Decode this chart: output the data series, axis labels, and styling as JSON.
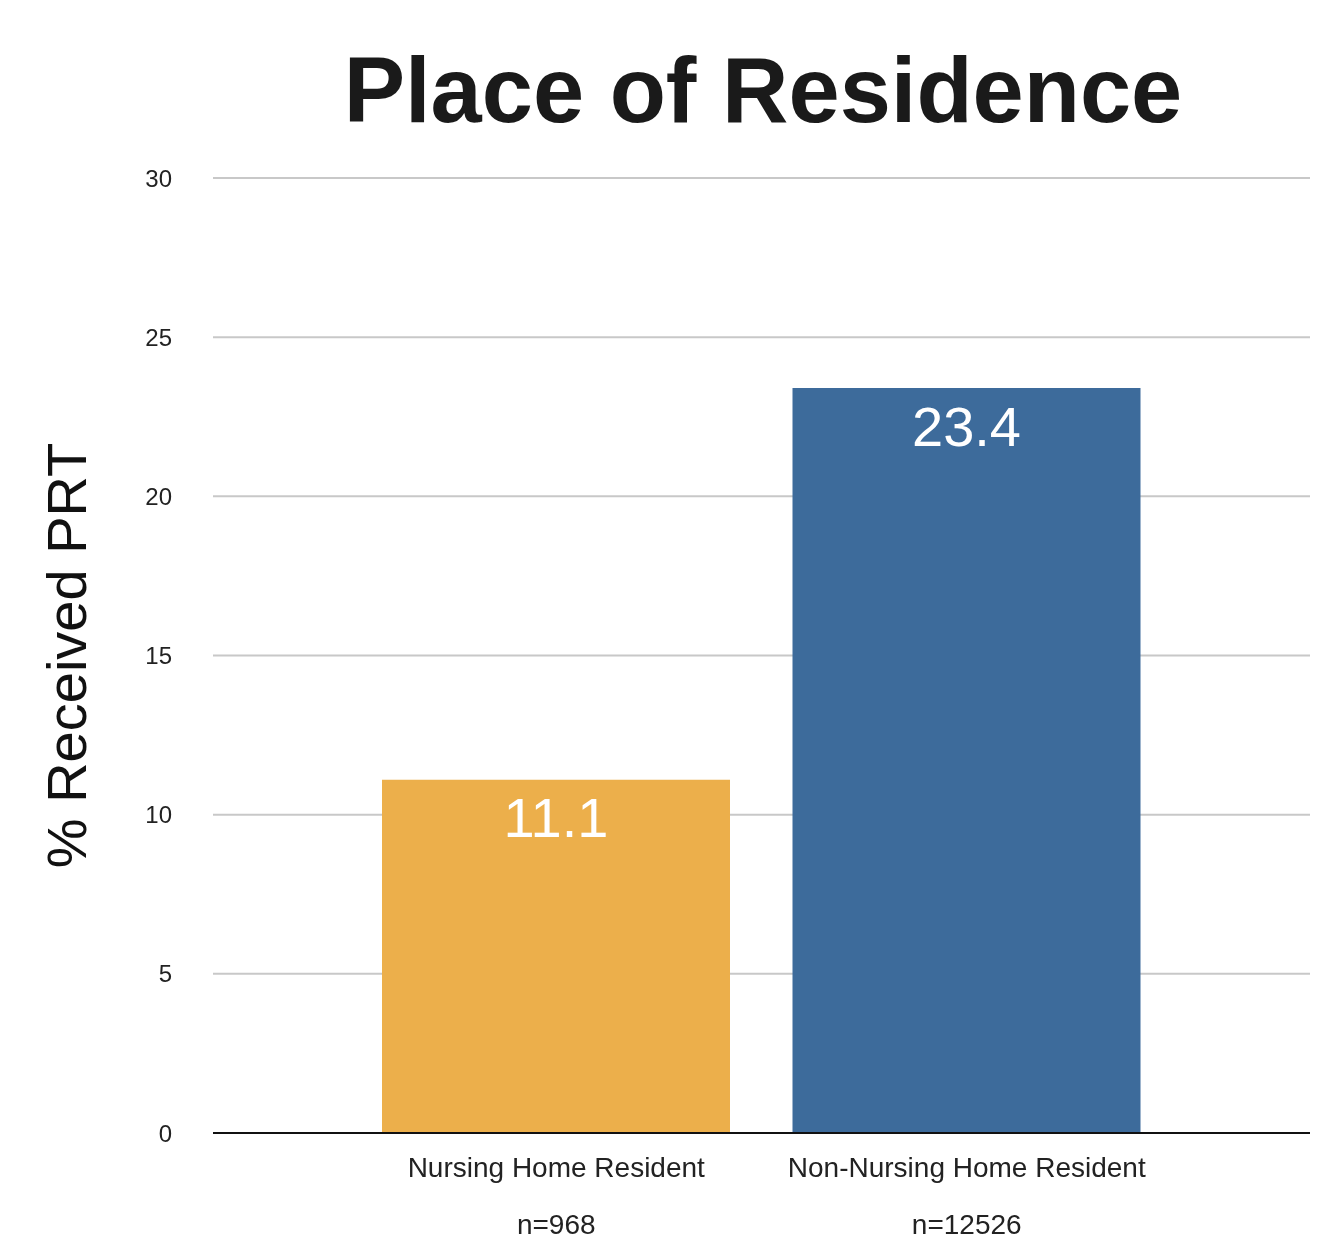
{
  "chart_data": {
    "type": "bar",
    "title": "Place of Residence",
    "ylabel": "% Received PRT",
    "categories": [
      "Nursing Home Resident",
      "Non-Nursing Home Resident"
    ],
    "values": [
      11.1,
      23.4
    ],
    "colors": [
      "#ecaf4b",
      "#3d6b9b"
    ],
    "ylim": [
      0,
      30
    ],
    "yticks": [
      0,
      5,
      10,
      15,
      20,
      25,
      30
    ],
    "grid": "y",
    "legend": false,
    "data_labels": true,
    "annotations": [
      "n=968",
      "n=12526"
    ]
  }
}
